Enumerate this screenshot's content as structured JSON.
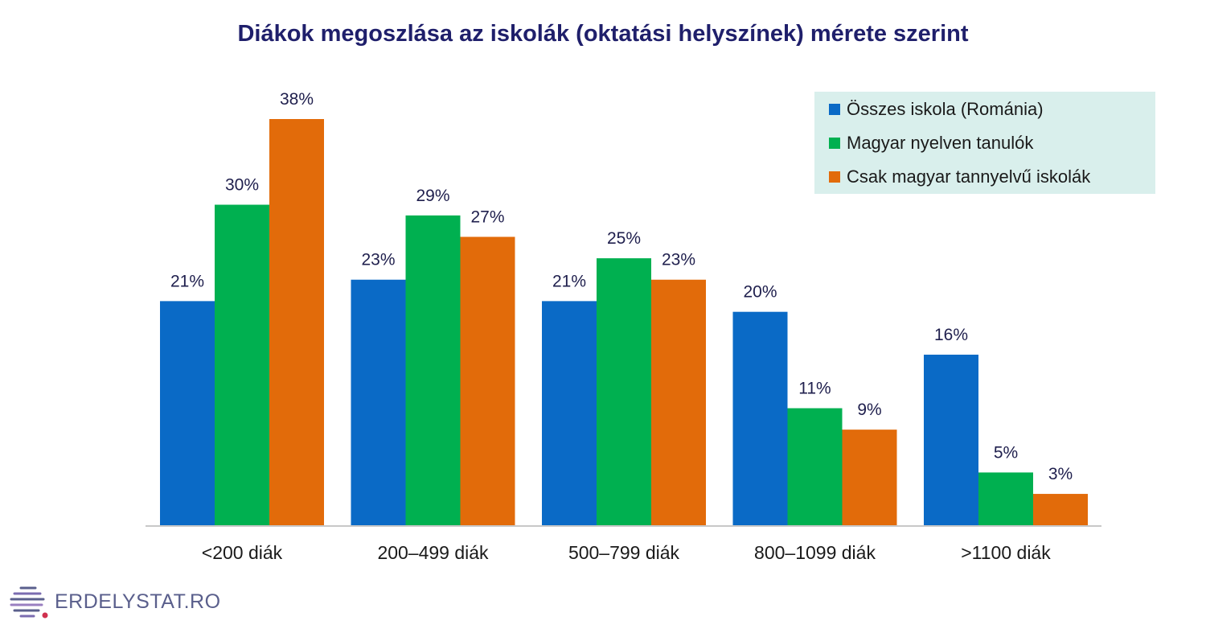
{
  "chart_data": {
    "type": "bar",
    "title": "Diákok megoszlása az iskolák (oktatási helyszínek) mérete szerint",
    "categories": [
      "<200 diák",
      "200–499 diák",
      "500–799 diák",
      "800–1099 diák",
      ">1100 diák"
    ],
    "series": [
      {
        "name": "Összes iskola (Románia)",
        "color": "#0a6ac6",
        "values": [
          21,
          23,
          21,
          20,
          16
        ],
        "labels": [
          "21%",
          "23%",
          "21%",
          "20%",
          "16%"
        ]
      },
      {
        "name": "Magyar nyelven tanulók",
        "color": "#00b050",
        "values": [
          30,
          29,
          25,
          11,
          5
        ],
        "labels": [
          "30%",
          "29%",
          "25%",
          "11%",
          "5%"
        ]
      },
      {
        "name": "Csak magyar tannyelvű iskolák",
        "color": "#e26b0a",
        "values": [
          38,
          27,
          23,
          9,
          3
        ],
        "labels": [
          "38%",
          "27%",
          "23%",
          "9%",
          "3%"
        ]
      }
    ],
    "ylim": [
      0,
      38
    ],
    "grid": false,
    "legend": "top-right"
  },
  "branding": {
    "logo_text": "ERDELYSTAT.RO"
  }
}
